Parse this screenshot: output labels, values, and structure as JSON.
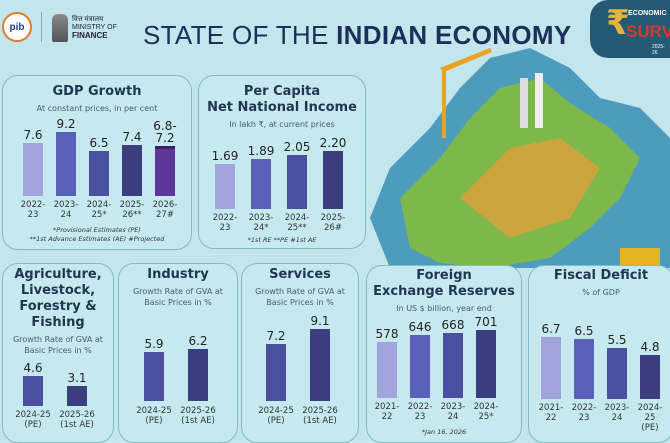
{
  "header": {
    "ministry_hindi": "वित्त मंत्रालय",
    "ministry_line1": "MINISTRY OF",
    "ministry_line2": "FINANCE",
    "pib": "pib",
    "title_light": "STATE OF THE ",
    "title_bold": "INDIAN ECONOMY",
    "survey_label": "ECONOMIC",
    "survey_word": "SURVEY",
    "survey_year": "2025-26"
  },
  "colors": {
    "bar1": "#a1a4dd",
    "bar2": "#5b60b9",
    "bar3": "#4b4f9f",
    "bar4": "#3a3e7e",
    "projected": "#5e3598",
    "background": "#c3e5ec"
  },
  "chart_data": [
    {
      "id": "gdp",
      "type": "bar",
      "title": "GDP Growth",
      "subtitle": "At constant prices, in per cent",
      "categories": [
        "2022-\n23",
        "2023-\n24",
        "2024-\n25*",
        "2025-\n26**",
        "2026-\n27#"
      ],
      "values": [
        7.6,
        9.2,
        6.5,
        7.4,
        7.2
      ],
      "value_labels": [
        "7.6",
        "9.2",
        "6.5",
        "7.4",
        "6.8-\n7.2"
      ],
      "range_low": [
        null,
        null,
        null,
        null,
        6.8
      ],
      "notes": [
        "*Provisional Estimates (PE)",
        "**1st Advance Estimates (AE)  #Projected"
      ]
    },
    {
      "id": "pcni",
      "type": "bar",
      "title": "Per Capita\nNet National Income",
      "subtitle": "In lakh ₹, at current prices",
      "categories": [
        "2022-\n23",
        "2023-\n24*",
        "2024-\n25**",
        "2025-\n26#"
      ],
      "values": [
        1.69,
        1.89,
        2.05,
        2.2
      ],
      "value_labels": [
        "1.69",
        "1.89",
        "2.05",
        "2.20"
      ],
      "notes": [
        "*1st RE  **PE  #1st AE"
      ]
    },
    {
      "id": "agri",
      "type": "bar",
      "title": "Agriculture,\nLivestock,\nForestry &\nFishing",
      "subtitle": "Growth Rate of GVA at\nBasic Prices in %",
      "categories": [
        "2024-25\n(PE)",
        "2025-26\n(1st AE)"
      ],
      "values": [
        4.6,
        3.1
      ],
      "value_labels": [
        "4.6",
        "3.1"
      ]
    },
    {
      "id": "industry",
      "type": "bar",
      "title": "Industry",
      "subtitle": "Growth Rate of GVA at\nBasic Prices in %",
      "categories": [
        "2024-25\n(PE)",
        "2025-26\n(1st AE)"
      ],
      "values": [
        5.9,
        6.2
      ],
      "value_labels": [
        "5.9",
        "6.2"
      ]
    },
    {
      "id": "services",
      "type": "bar",
      "title": "Services",
      "subtitle": "Growth Rate of GVA at\nBasic Prices in %",
      "categories": [
        "2024-25\n(PE)",
        "2025-26\n(1st AE)"
      ],
      "values": [
        7.2,
        9.1
      ],
      "value_labels": [
        "7.2",
        "9.1"
      ]
    },
    {
      "id": "forex",
      "type": "bar",
      "title": "Foreign\nExchange Reserves",
      "subtitle": "In US $ billion, year end",
      "categories": [
        "2021-\n22",
        "2022-\n23",
        "2023-\n24",
        "2024-\n25*"
      ],
      "values": [
        578,
        646,
        668,
        701
      ],
      "value_labels": [
        "578",
        "646",
        "668",
        "701"
      ],
      "notes": [
        "*Jan 16, 2026"
      ]
    },
    {
      "id": "fiscal",
      "type": "bar",
      "title": "Fiscal Deficit",
      "subtitle": "% of GDP",
      "categories": [
        "2021-\n22",
        "2022-\n23",
        "2023-\n24",
        "2024-\n25\n(PE)"
      ],
      "values": [
        6.7,
        6.5,
        5.5,
        4.8
      ],
      "value_labels": [
        "6.7",
        "6.5",
        "5.5",
        "4.8"
      ]
    }
  ]
}
